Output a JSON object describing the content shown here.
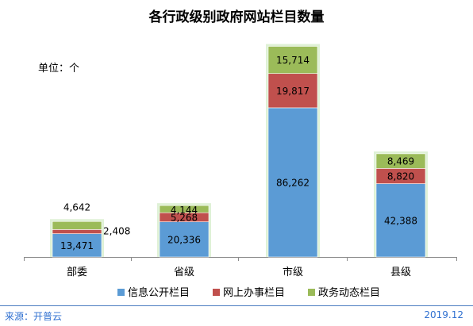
{
  "chart_data": {
    "type": "bar",
    "stacked": true,
    "title": "各行政级别政府网站栏目数量",
    "unit_label": "单位：个",
    "categories": [
      "部委",
      "省级",
      "市级",
      "县级"
    ],
    "series": [
      {
        "name": "信息公开栏目",
        "color": "#5b9bd5",
        "values": [
          13471,
          20336,
          86262,
          42388
        ],
        "labels": [
          "13,471",
          "20,336",
          "86,262",
          "42,388"
        ]
      },
      {
        "name": "网上办事栏目",
        "color": "#c0504d",
        "values": [
          2408,
          5268,
          19817,
          8820
        ],
        "labels": [
          "2,408",
          "5,268",
          "19,817",
          "8,820"
        ]
      },
      {
        "name": "政务动态栏目",
        "color": "#9bbb59",
        "values": [
          4642,
          4144,
          15714,
          8469
        ],
        "labels": [
          "4,642",
          "4,144",
          "15,714",
          "8,469"
        ]
      }
    ],
    "ylim": [
      0,
      122000
    ],
    "grid": false,
    "legend_position": "bottom"
  },
  "footer": {
    "source": "来源：开普云",
    "date": "2019.12"
  }
}
